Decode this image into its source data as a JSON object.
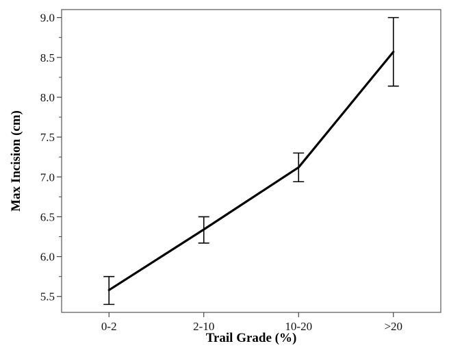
{
  "chart_data": {
    "type": "line",
    "categories": [
      "0-2",
      "2-10",
      "10-20",
      ">20"
    ],
    "series": [
      {
        "values": [
          5.58,
          6.34,
          7.12,
          8.57
        ],
        "error_low": [
          5.4,
          6.17,
          6.94,
          8.14
        ],
        "error_high": [
          5.75,
          6.5,
          7.3,
          9.0
        ]
      }
    ],
    "xlabel": "Trail Grade (%)",
    "ylabel": "Max Incision (cm)",
    "ylim": [
      5.3,
      9.1
    ],
    "yticks": [
      "5.5",
      "6.0",
      "6.5",
      "7.0",
      "7.5",
      "8.0",
      "8.5",
      "9.0"
    ],
    "grid": false,
    "legend": "none",
    "line_color": "#000000"
  }
}
